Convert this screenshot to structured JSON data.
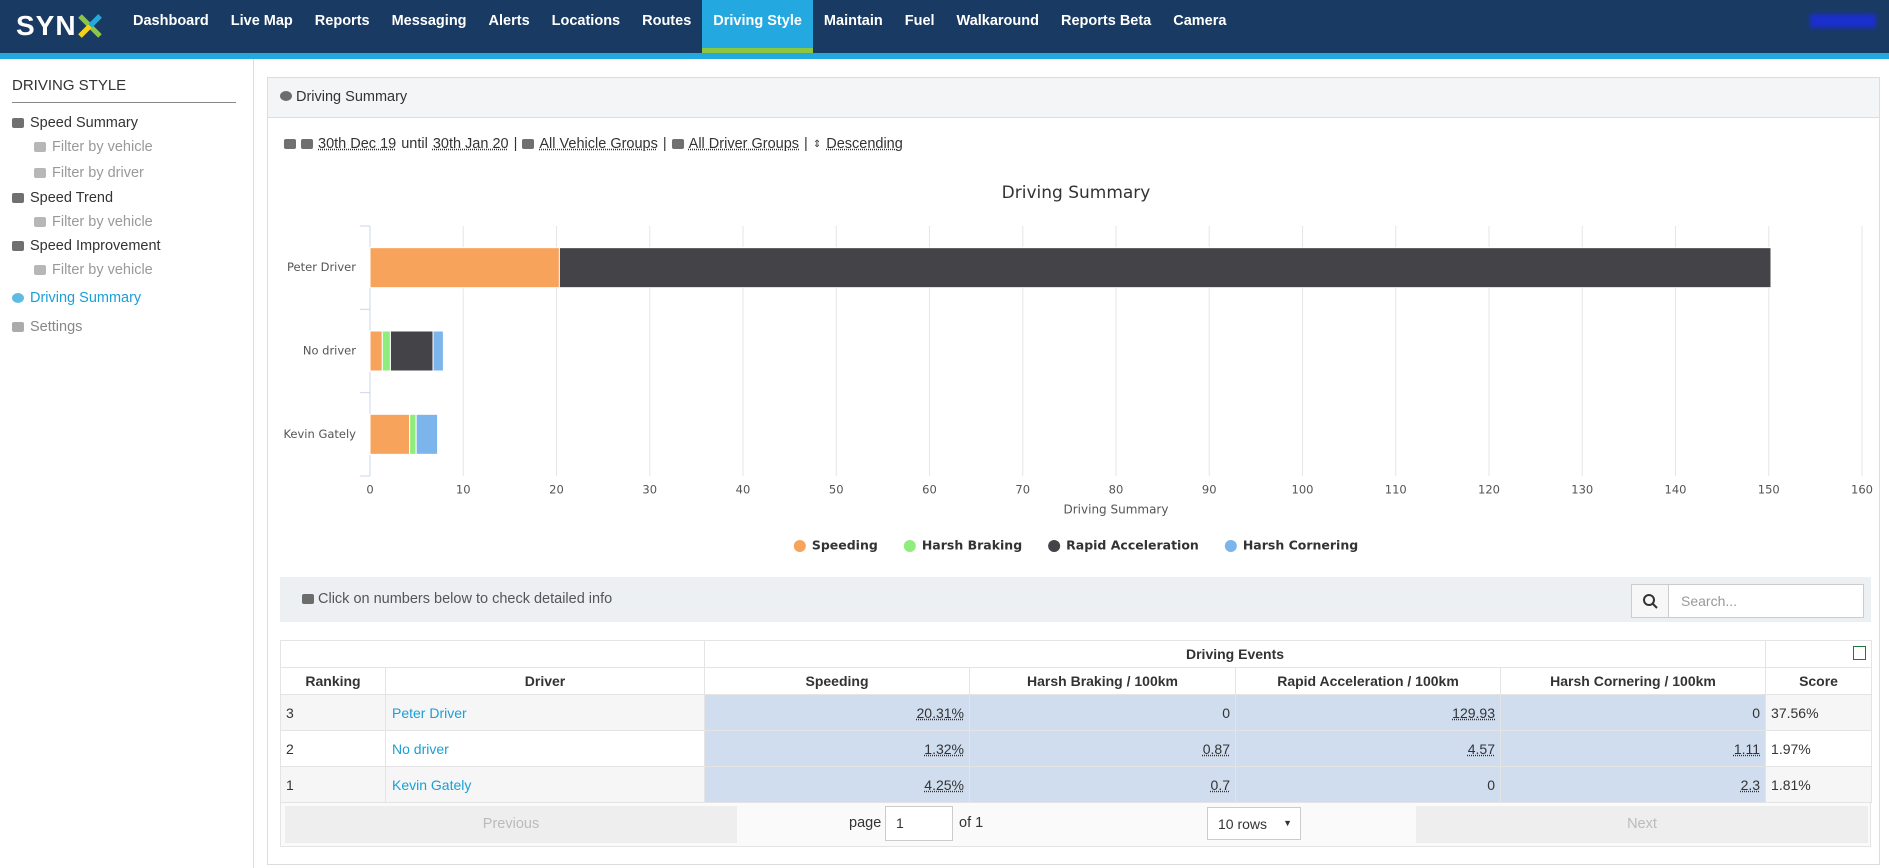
{
  "nav": {
    "logo": "SYN",
    "items": [
      "Dashboard",
      "Live Map",
      "Reports",
      "Messaging",
      "Alerts",
      "Locations",
      "Routes",
      "Driving Style",
      "Maintain",
      "Fuel",
      "Walkaround",
      "Reports Beta",
      "Camera"
    ]
  },
  "sidebar": {
    "title": "DRIVING STYLE",
    "items": [
      "Speed Summary",
      "Filter by vehicle",
      "Filter by driver",
      "Speed Trend",
      "Filter by vehicle",
      "Speed Improvement",
      "Filter by vehicle",
      "Driving Summary",
      "Settings"
    ]
  },
  "panel": {
    "title": "Driving Summary",
    "filter": {
      "from": "30th Dec 19",
      "until": "until",
      "to": "30th Jan 20",
      "separator": "|",
      "vehicles": "All Vehicle Groups",
      "drivers": "All Driver Groups",
      "order": "Descending"
    }
  },
  "chart_data": {
    "type": "stacked-bar-horizontal",
    "title": "Driving Summary",
    "x_label": "Driving Summary",
    "categories": [
      "Peter Driver",
      "No driver",
      "Kevin Gately"
    ],
    "series": [
      {
        "name": "Speeding",
        "color": "#f7a35c",
        "values": [
          20.31,
          1.32,
          4.25
        ]
      },
      {
        "name": "Harsh Braking",
        "color": "#90ed7d",
        "values": [
          0,
          0.87,
          0.7
        ]
      },
      {
        "name": "Rapid Acceleration",
        "color": "#434348",
        "values": [
          129.93,
          4.57,
          0
        ]
      },
      {
        "name": "Harsh Cornering",
        "color": "#7cb5ec",
        "values": [
          0,
          1.11,
          2.3
        ]
      }
    ],
    "xlim": [
      0,
      160
    ],
    "xticks": [
      0,
      10,
      20,
      30,
      40,
      50,
      60,
      70,
      80,
      90,
      100,
      110,
      120,
      130,
      140,
      150,
      160
    ],
    "grid": true,
    "legend": "bottom"
  },
  "info": {
    "text": "Click on numbers below to check detailed info",
    "search": "Search..."
  },
  "table": {
    "group_header": "Driving Events",
    "columns": [
      "Ranking",
      "Driver",
      "Speeding",
      "Harsh Braking / 100km",
      "Rapid Acceleration / 100km",
      "Harsh Cornering / 100km",
      "Score"
    ],
    "rows": [
      [
        "3",
        "Peter Driver",
        "20.31%",
        "0",
        "129.93",
        "0",
        "37.56%"
      ],
      [
        "2",
        "No driver",
        "1.32%",
        "0.87",
        "4.57",
        "1.11",
        "1.97%"
      ],
      [
        "1",
        "Kevin Gately",
        "4.25%",
        "0.7",
        "0",
        "2.3",
        "1.81%"
      ]
    ]
  },
  "pagination": {
    "previous": "Previous",
    "page": "page",
    "current": "1",
    "of": "of 1",
    "rows": "10 rows",
    "next": "Next"
  }
}
